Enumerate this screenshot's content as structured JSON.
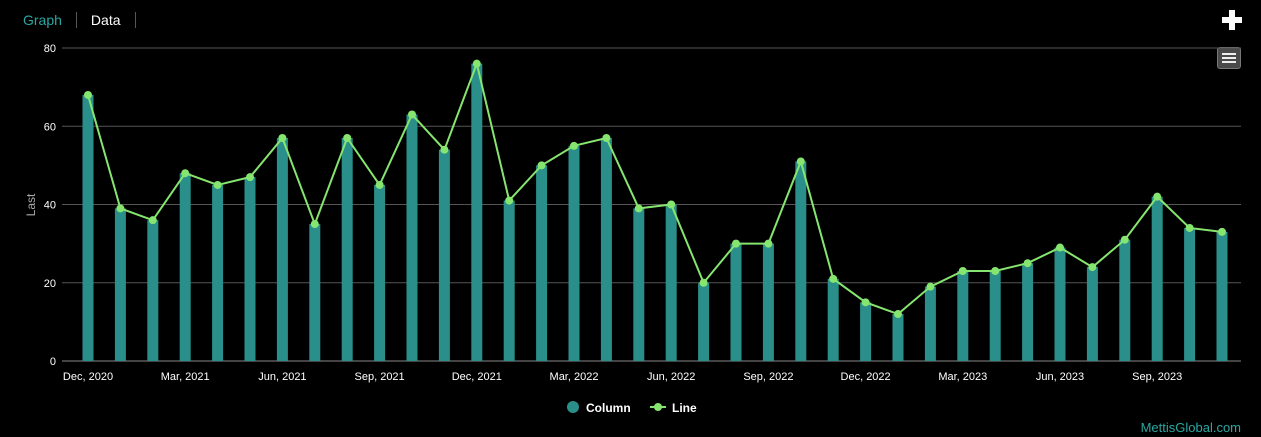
{
  "tabs": {
    "graph": "Graph",
    "data": "Data"
  },
  "credit": "MettisGlobal.com",
  "colors": {
    "column": "#2a8f8b",
    "line": "#86e56f",
    "accent": "#2aa7a1",
    "grid": "#555555"
  },
  "chart_data": {
    "type": "bar",
    "ylabel": "Last",
    "ylim": [
      0,
      80
    ],
    "yticks": [
      "0",
      "20",
      "40",
      "60",
      "80"
    ],
    "x_tick_labels": [
      {
        "index": 0,
        "label": "Dec, 2020"
      },
      {
        "index": 3,
        "label": "Mar, 2021"
      },
      {
        "index": 6,
        "label": "Jun, 2021"
      },
      {
        "index": 9,
        "label": "Sep, 2021"
      },
      {
        "index": 12,
        "label": "Dec, 2021"
      },
      {
        "index": 15,
        "label": "Mar, 2022"
      },
      {
        "index": 18,
        "label": "Jun, 2022"
      },
      {
        "index": 21,
        "label": "Sep, 2022"
      },
      {
        "index": 24,
        "label": "Dec, 2022"
      },
      {
        "index": 27,
        "label": "Mar, 2023"
      },
      {
        "index": 30,
        "label": "Jun, 2023"
      },
      {
        "index": 33,
        "label": "Sep, 2023"
      }
    ],
    "categories": [
      "Dec, 2020",
      "Jan, 2021",
      "Feb, 2021",
      "Mar, 2021",
      "Apr, 2021",
      "May, 2021",
      "Jun, 2021",
      "Jul, 2021",
      "Aug, 2021",
      "Sep, 2021",
      "Oct, 2021",
      "Nov, 2021",
      "Dec, 2021",
      "Jan, 2022",
      "Feb, 2022",
      "Mar, 2022",
      "Apr, 2022",
      "May, 2022",
      "Jun, 2022",
      "Jul, 2022",
      "Aug, 2022",
      "Sep, 2022",
      "Oct, 2022",
      "Nov, 2022",
      "Dec, 2022",
      "Jan, 2023",
      "Feb, 2023",
      "Mar, 2023",
      "Apr, 2023",
      "May, 2023",
      "Jun, 2023",
      "Jul, 2023",
      "Aug, 2023",
      "Sep, 2023",
      "Oct, 2023",
      "Nov, 2023"
    ],
    "series": [
      {
        "name": "Column",
        "type": "bar",
        "values": [
          68,
          39,
          36,
          48,
          45,
          47,
          57,
          35,
          57,
          45,
          63,
          54,
          76,
          41,
          50,
          55,
          57,
          39,
          40,
          20,
          30,
          30,
          51,
          21,
          15,
          12,
          19,
          23,
          23,
          25,
          29,
          24,
          31,
          42,
          34,
          33
        ]
      },
      {
        "name": "Line",
        "type": "line",
        "values": [
          68,
          39,
          36,
          48,
          45,
          47,
          57,
          35,
          57,
          45,
          63,
          54,
          76,
          41,
          50,
          55,
          57,
          39,
          40,
          20,
          30,
          30,
          51,
          21,
          15,
          12,
          19,
          23,
          23,
          25,
          29,
          24,
          31,
          42,
          34,
          33
        ]
      }
    ],
    "legend": {
      "position": "bottom-center"
    },
    "grid": true
  }
}
